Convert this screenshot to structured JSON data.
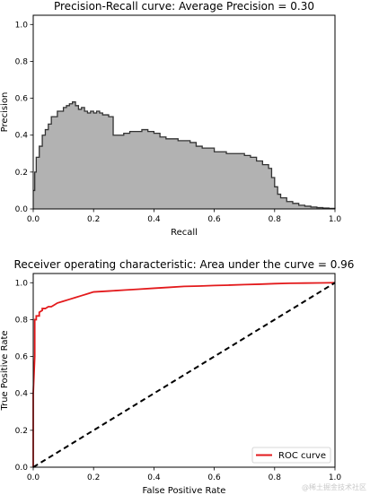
{
  "chart_data": [
    {
      "type": "area",
      "title": "Precision-Recall curve: Average Precision =          0.30",
      "xlabel": "Recall",
      "ylabel": "Precision",
      "xlim": [
        0.0,
        1.0
      ],
      "ylim": [
        0.0,
        1.05
      ],
      "xticks": [
        "0.0",
        "0.2",
        "0.4",
        "0.6",
        "0.8",
        "1.0"
      ],
      "yticks": [
        "0.0",
        "0.2",
        "0.4",
        "0.6",
        "0.8",
        "1.0"
      ],
      "step": true,
      "fill_color": "#b2b2b2",
      "line_color": "#333333",
      "series": [
        {
          "x": [
            0.0,
            0.005,
            0.01,
            0.02,
            0.03,
            0.04,
            0.05,
            0.06,
            0.07,
            0.08,
            0.09,
            0.1,
            0.11,
            0.12,
            0.13,
            0.14,
            0.15,
            0.16,
            0.17,
            0.18,
            0.19,
            0.2,
            0.21,
            0.22,
            0.23,
            0.24,
            0.25,
            0.26,
            0.265,
            0.28,
            0.3,
            0.32,
            0.34,
            0.36,
            0.38,
            0.4,
            0.42,
            0.44,
            0.46,
            0.48,
            0.5,
            0.52,
            0.54,
            0.56,
            0.58,
            0.6,
            0.62,
            0.64,
            0.66,
            0.68,
            0.7,
            0.72,
            0.74,
            0.76,
            0.78,
            0.79,
            0.8,
            0.81,
            0.82,
            0.84,
            0.86,
            0.88,
            0.9,
            0.92,
            0.94,
            0.96,
            0.98,
            1.0
          ],
          "y": [
            0.1,
            0.2,
            0.28,
            0.34,
            0.4,
            0.43,
            0.46,
            0.5,
            0.5,
            0.53,
            0.53,
            0.55,
            0.56,
            0.57,
            0.58,
            0.56,
            0.54,
            0.55,
            0.53,
            0.52,
            0.53,
            0.52,
            0.53,
            0.52,
            0.51,
            0.51,
            0.5,
            0.5,
            0.4,
            0.4,
            0.41,
            0.42,
            0.42,
            0.43,
            0.42,
            0.41,
            0.39,
            0.38,
            0.38,
            0.37,
            0.37,
            0.36,
            0.34,
            0.33,
            0.33,
            0.31,
            0.31,
            0.3,
            0.3,
            0.3,
            0.29,
            0.28,
            0.26,
            0.24,
            0.22,
            0.17,
            0.12,
            0.08,
            0.06,
            0.04,
            0.03,
            0.02,
            0.015,
            0.01,
            0.007,
            0.005,
            0.003,
            0.002
          ]
        }
      ]
    },
    {
      "type": "line",
      "title": "Receiver operating characteristic: Area under the         curve = 0.96",
      "xlabel": "False Positive Rate",
      "ylabel": "True Positive Rate",
      "xlim": [
        0.0,
        1.0
      ],
      "ylim": [
        0.0,
        1.05
      ],
      "xticks": [
        "0.0",
        "0.2",
        "0.4",
        "0.6",
        "0.8",
        "1.0"
      ],
      "yticks": [
        "0.0",
        "0.2",
        "0.4",
        "0.6",
        "0.8",
        "1.0"
      ],
      "legend": {
        "label": "ROC curve",
        "placement": "lower-right"
      },
      "series": [
        {
          "name": "ROC curve",
          "color": "#e31a1c",
          "x": [
            0.0,
            0.0,
            0.005,
            0.005,
            0.01,
            0.01,
            0.02,
            0.02,
            0.03,
            0.03,
            0.04,
            0.05,
            0.06,
            0.07,
            0.08,
            0.1,
            0.12,
            0.14,
            0.16,
            0.18,
            0.2,
            0.25,
            0.3,
            0.35,
            0.4,
            0.45,
            0.5,
            0.55,
            0.6,
            0.65,
            0.7,
            0.75,
            0.8,
            0.85,
            0.9,
            0.95,
            1.0
          ],
          "y": [
            0.0,
            0.4,
            0.6,
            0.8,
            0.8,
            0.82,
            0.82,
            0.84,
            0.85,
            0.86,
            0.86,
            0.87,
            0.87,
            0.88,
            0.89,
            0.9,
            0.91,
            0.92,
            0.93,
            0.94,
            0.95,
            0.955,
            0.96,
            0.965,
            0.97,
            0.975,
            0.98,
            0.982,
            0.985,
            0.987,
            0.99,
            0.992,
            0.995,
            0.997,
            0.998,
            0.999,
            1.0
          ]
        },
        {
          "color": "#000000",
          "dashed": true,
          "x": [
            0.0,
            1.0
          ],
          "y": [
            0.0,
            1.0
          ]
        }
      ]
    }
  ],
  "watermark": "@稀土掘金技术社区"
}
